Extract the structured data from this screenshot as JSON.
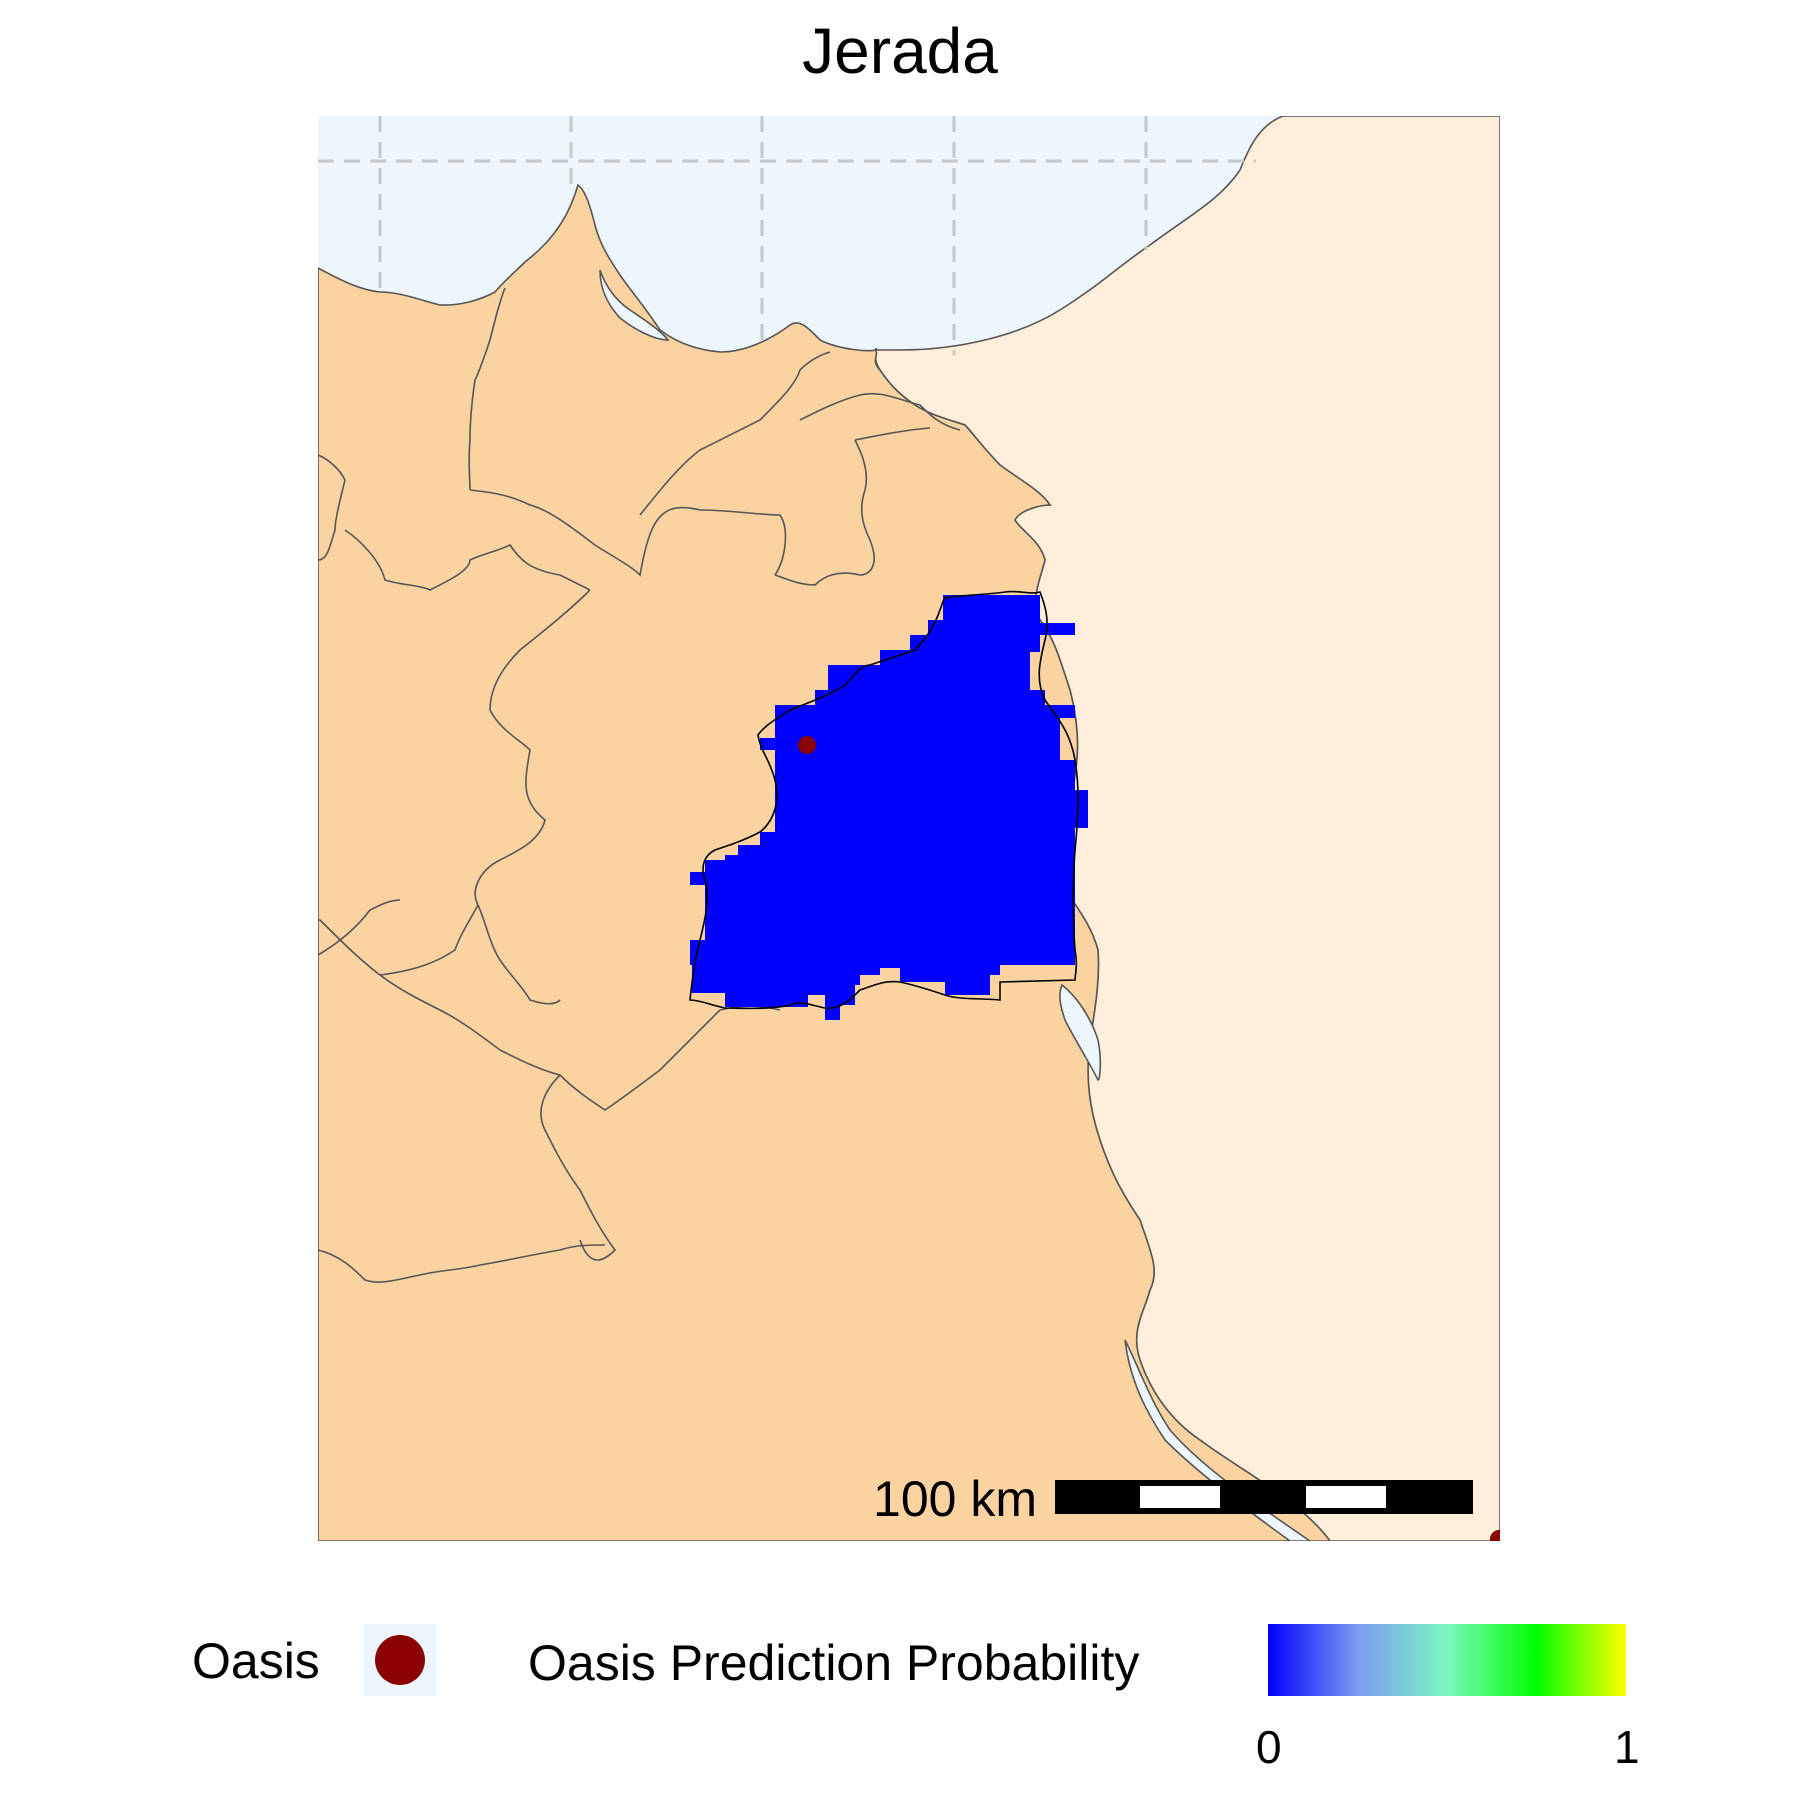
{
  "title": "Jerada",
  "scalebar": {
    "label": "100 km"
  },
  "legend": {
    "oasis_label": "Oasis",
    "prediction_label": "Oasis Prediction Probability",
    "min_label": "0",
    "max_label": "1",
    "gradient_colors": [
      "#0000ff",
      "#7b9cf0",
      "#7bf7c0",
      "#00ff00",
      "#ffff00"
    ]
  },
  "colors": {
    "sea": "#eef6fd",
    "land": "#fad3a0",
    "neighbor_country": "#ffefda",
    "prediction_fill": "#0000ff",
    "oasis_point": "#8b0000"
  }
}
